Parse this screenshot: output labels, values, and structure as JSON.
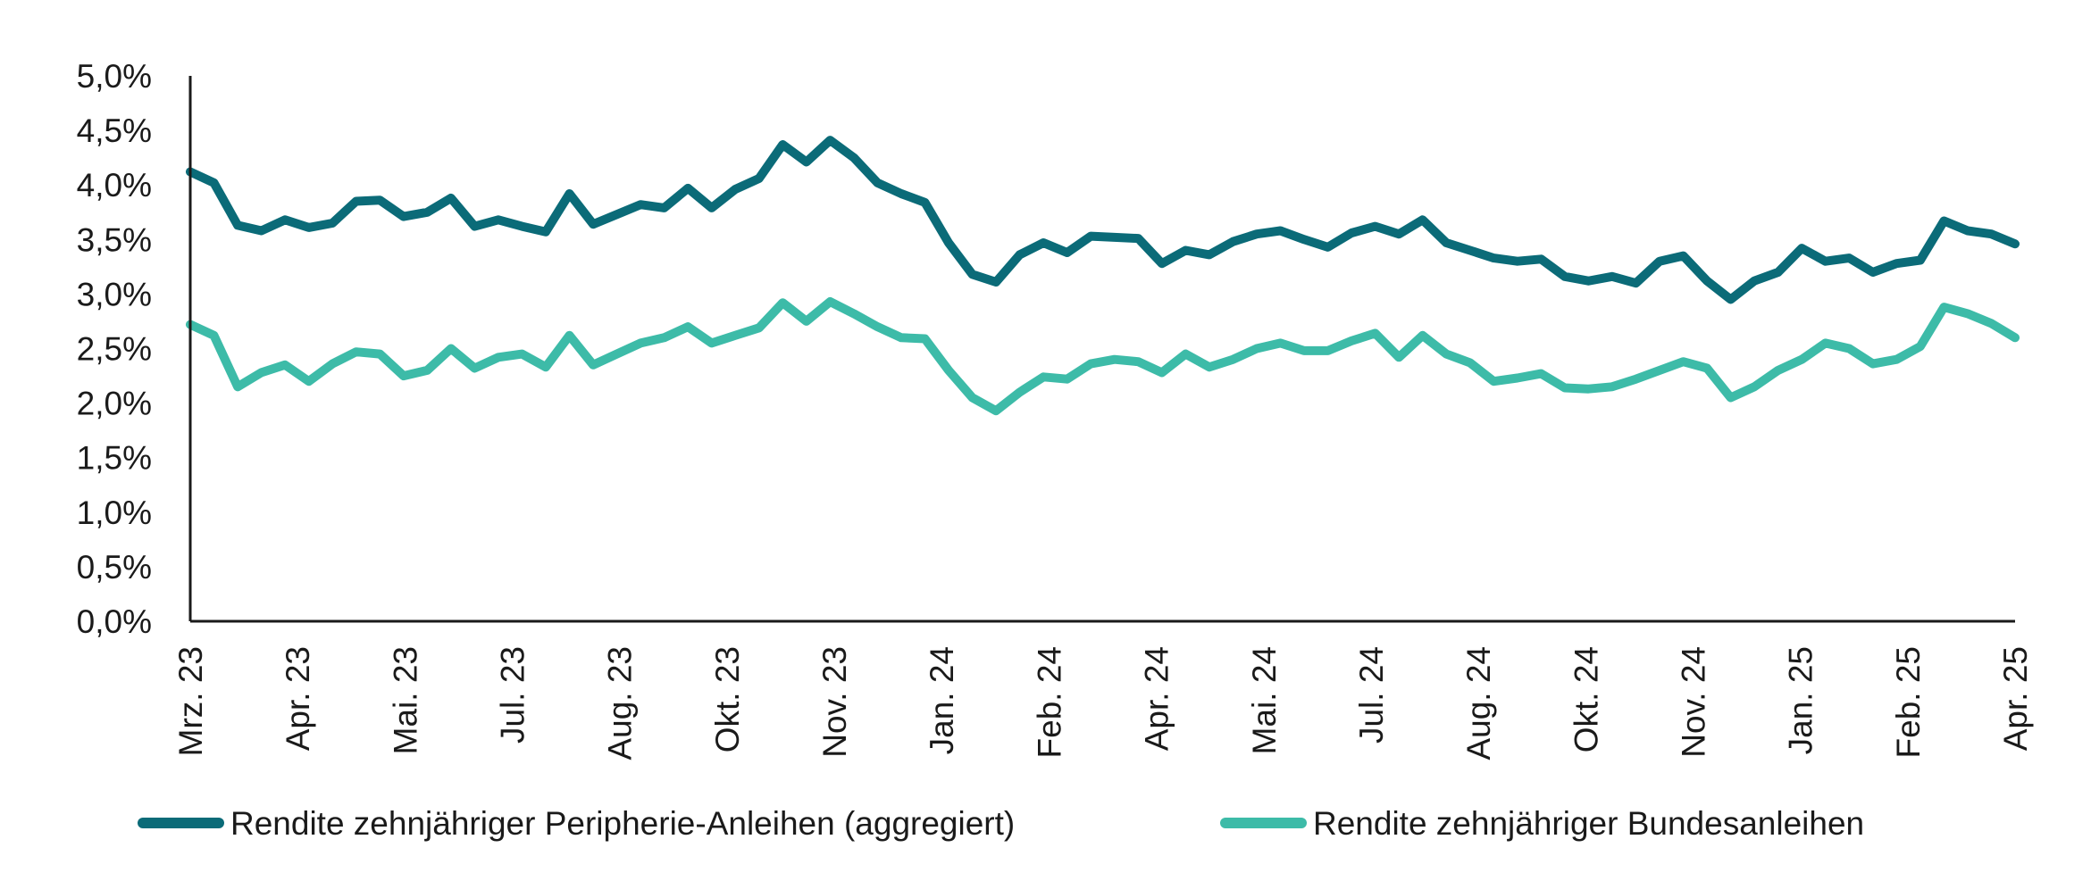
{
  "chart_data": {
    "type": "line",
    "title": "",
    "xlabel": "",
    "ylabel": "",
    "ylim": [
      0,
      5
    ],
    "yticks": [
      "0,0%",
      "0,5%",
      "1,0%",
      "1,5%",
      "2,0%",
      "2,5%",
      "3,0%",
      "3,5%",
      "4,0%",
      "4,5%",
      "5,0%"
    ],
    "xticks": [
      "Mrz. 23",
      "Apr. 23",
      "Mai. 23",
      "Jul. 23",
      "Aug. 23",
      "Okt. 23",
      "Nov. 23",
      "Jan. 24",
      "Feb. 24",
      "Apr. 24",
      "Mai. 24",
      "Jul. 24",
      "Aug. 24",
      "Okt. 24",
      "Nov. 24",
      "Jan. 25",
      "Feb. 25",
      "Apr. 25"
    ],
    "legend_position": "bottom",
    "series": [
      {
        "name": "Rendite zehnjähriger Peripherie-Anleihen (aggregiert)",
        "color": "#0b6b78",
        "values": [
          4.12,
          4.02,
          3.63,
          3.58,
          3.68,
          3.61,
          3.65,
          3.85,
          3.86,
          3.71,
          3.75,
          3.88,
          3.62,
          3.68,
          3.62,
          3.57,
          3.92,
          3.64,
          3.73,
          3.82,
          3.79,
          3.97,
          3.79,
          3.96,
          4.06,
          4.37,
          4.21,
          4.41,
          4.25,
          4.02,
          3.92,
          3.84,
          3.47,
          3.18,
          3.11,
          3.36,
          3.47,
          3.38,
          3.53,
          3.52,
          3.51,
          3.28,
          3.4,
          3.36,
          3.48,
          3.55,
          3.58,
          3.5,
          3.43,
          3.56,
          3.62,
          3.55,
          3.68,
          3.47,
          3.4,
          3.33,
          3.3,
          3.32,
          3.16,
          3.12,
          3.16,
          3.1,
          3.3,
          3.35,
          3.12,
          2.95,
          3.12,
          3.2,
          3.42,
          3.3,
          3.33,
          3.2,
          3.28,
          3.31,
          3.67,
          3.58,
          3.55,
          3.46
        ]
      },
      {
        "name": "Rendite zehnjähriger Bundesanleihen",
        "color": "#3dbba8",
        "values": [
          2.72,
          2.62,
          2.15,
          2.28,
          2.35,
          2.2,
          2.36,
          2.47,
          2.45,
          2.25,
          2.3,
          2.5,
          2.32,
          2.42,
          2.45,
          2.33,
          2.62,
          2.35,
          2.45,
          2.55,
          2.6,
          2.7,
          2.55,
          2.62,
          2.69,
          2.92,
          2.75,
          2.93,
          2.82,
          2.7,
          2.6,
          2.59,
          2.3,
          2.05,
          1.93,
          2.1,
          2.24,
          2.22,
          2.36,
          2.4,
          2.38,
          2.28,
          2.45,
          2.33,
          2.4,
          2.5,
          2.55,
          2.48,
          2.48,
          2.57,
          2.64,
          2.42,
          2.62,
          2.45,
          2.37,
          2.2,
          2.23,
          2.27,
          2.14,
          2.13,
          2.15,
          2.22,
          2.3,
          2.38,
          2.32,
          2.05,
          2.15,
          2.3,
          2.4,
          2.55,
          2.5,
          2.36,
          2.4,
          2.52,
          2.88,
          2.82,
          2.73,
          2.6
        ]
      }
    ]
  }
}
